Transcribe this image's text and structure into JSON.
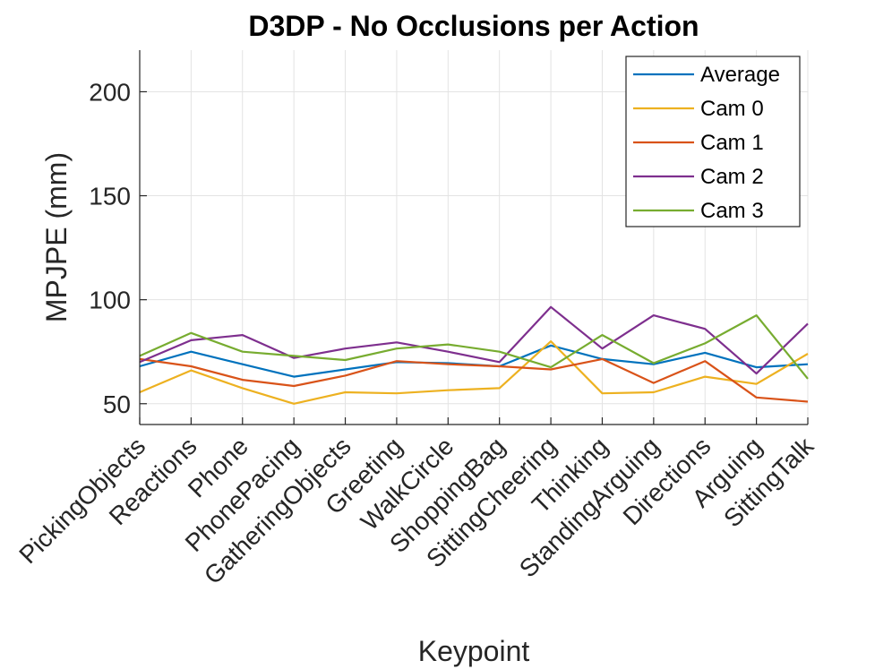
{
  "chart_data": {
    "type": "line",
    "title": "D3DP - No Occlusions per Action",
    "xlabel": "Keypoint",
    "ylabel": "MPJPE (mm)",
    "ylim": [
      40,
      220
    ],
    "yticks": [
      50,
      100,
      150,
      200
    ],
    "grid": true,
    "legend_position": "top-right",
    "categories": [
      "PickingObjects",
      "Reactions",
      "Phone",
      "PhonePacing",
      "GatheringObjects",
      "Greeting",
      "WalkCircle",
      "ShoppingBag",
      "SittingCheering",
      "Thinking",
      "StandingArguing",
      "Directions",
      "Arguing",
      "SittingTalk"
    ],
    "series": [
      {
        "name": "Average",
        "color": "#0072bd",
        "values": [
          68,
          75,
          69,
          63,
          66.5,
          70,
          69.5,
          68,
          78,
          71.5,
          69,
          74.5,
          67.5,
          69
        ]
      },
      {
        "name": "Cam 0",
        "color": "#edb120",
        "values": [
          55.5,
          66,
          57.5,
          50,
          55.5,
          55,
          56.5,
          57.5,
          80,
          55,
          55.5,
          63,
          59.5,
          74
        ]
      },
      {
        "name": "Cam 1",
        "color": "#d95319",
        "values": [
          71.5,
          68,
          61.5,
          58.5,
          63.5,
          70.5,
          69,
          68,
          66.5,
          71.5,
          60,
          70.5,
          53,
          51
        ]
      },
      {
        "name": "Cam 2",
        "color": "#7e2f8e",
        "values": [
          70,
          80.5,
          83,
          72,
          76.5,
          79.5,
          75,
          70,
          96.5,
          76.5,
          92.5,
          86,
          64.5,
          88.5
        ]
      },
      {
        "name": "Cam 3",
        "color": "#77ac30",
        "values": [
          73,
          84,
          75,
          73,
          71,
          76.5,
          78.5,
          75,
          67.5,
          83,
          69.5,
          79,
          92.5,
          62
        ]
      }
    ]
  }
}
